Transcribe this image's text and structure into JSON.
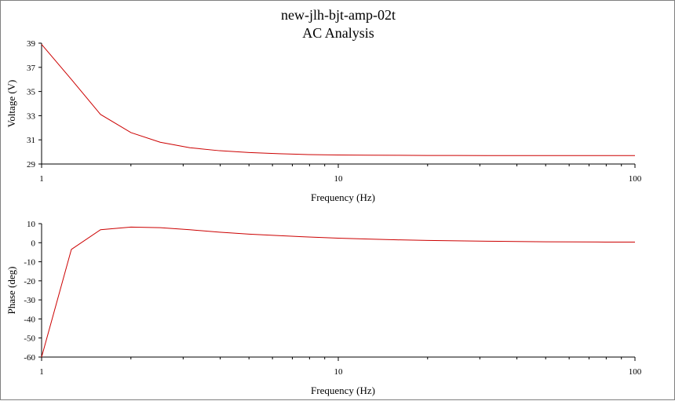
{
  "title": "new-jlh-bjt-amp-02t",
  "subtitle": "AC Analysis",
  "colors": {
    "trace": "#cc0000",
    "axis": "#000000",
    "background": "#ffffff"
  },
  "chart_data": [
    {
      "type": "line",
      "name": "voltage-plot",
      "xscale": "log",
      "xlim": [
        1,
        100
      ],
      "ylim": [
        29,
        39
      ],
      "xlabel": "Frequency (Hz)",
      "ylabel": "Voltage (V)",
      "x_ticks": [
        "1",
        "10",
        "100"
      ],
      "y_ticks": [
        "39",
        "37",
        "35",
        "33",
        "31",
        "29"
      ],
      "grid": false,
      "series": [
        {
          "x": [
            1,
            1.26,
            1.58,
            2,
            2.51,
            3.16,
            3.98,
            5.01,
            6.31,
            7.94,
            10,
            12.6,
            15.8,
            20,
            25.1,
            31.6,
            39.8,
            50.1,
            63.1,
            79.4,
            100
          ],
          "y": [
            38.9,
            36.0,
            33.1,
            31.6,
            30.8,
            30.35,
            30.1,
            29.95,
            29.85,
            29.78,
            29.75,
            29.73,
            29.72,
            29.71,
            29.71,
            29.7,
            29.7,
            29.7,
            29.7,
            29.7,
            29.7
          ]
        }
      ]
    },
    {
      "type": "line",
      "name": "phase-plot",
      "xscale": "log",
      "xlim": [
        1,
        100
      ],
      "ylim": [
        -60,
        10
      ],
      "xlabel": "Frequency (Hz)",
      "ylabel": "Phase (deg)",
      "x_ticks": [
        "1",
        "10",
        "100"
      ],
      "y_ticks": [
        "10",
        "0",
        "-10",
        "-20",
        "-30",
        "-40",
        "-50",
        "-60"
      ],
      "grid": false,
      "series": [
        {
          "x": [
            1,
            1.26,
            1.58,
            2,
            2.51,
            3.16,
            3.98,
            5.01,
            6.31,
            7.94,
            10,
            12.6,
            15.8,
            20,
            25.1,
            31.6,
            39.8,
            50.1,
            63.1,
            79.4,
            100
          ],
          "y": [
            -60,
            -3.5,
            6.8,
            8.2,
            7.9,
            6.8,
            5.5,
            4.5,
            3.7,
            3.0,
            2.4,
            1.9,
            1.5,
            1.2,
            1.0,
            0.8,
            0.65,
            0.5,
            0.4,
            0.35,
            0.3
          ]
        }
      ]
    }
  ]
}
